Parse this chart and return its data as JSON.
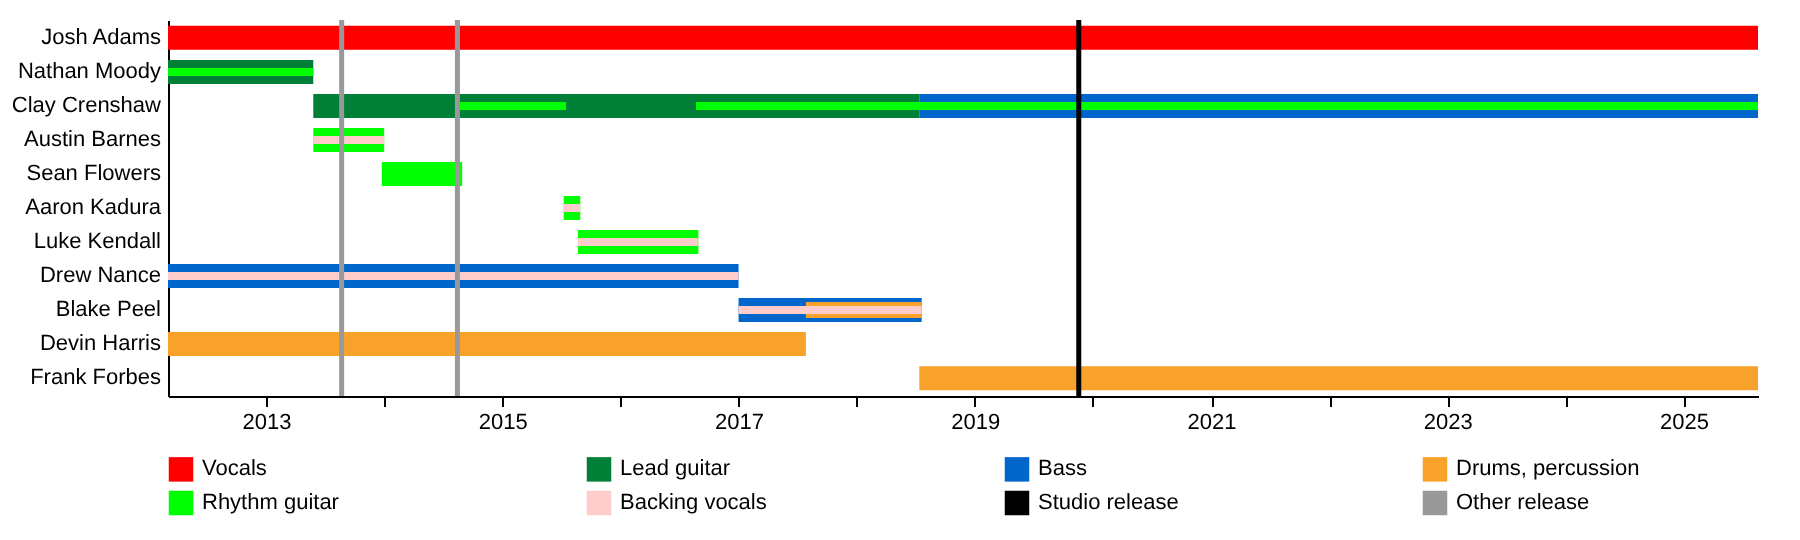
{
  "chart_data": {
    "type": "bar",
    "orientation": "horizontal",
    "legend": "bottom",
    "categories": [
      "Josh Adams",
      "Nathan Moody",
      "Clay Crenshaw",
      "Austin Barnes",
      "Sean Flowers",
      "Aaron Kadura",
      "Luke Kendall",
      "Drew Nance",
      "Blake Peel",
      "Devin Harris",
      "Frank Forbes"
    ],
    "series": [
      {
        "name": "Vocals",
        "color": "#ff0000",
        "base": [
          2012.17,
          null,
          null,
          null,
          null,
          null,
          null,
          null,
          null,
          null,
          null
        ],
        "values": [
          13.46,
          null,
          null,
          null,
          null,
          null,
          null,
          null,
          null,
          null,
          null
        ]
      },
      {
        "name": "Lead guitar",
        "color": "#007f37",
        "base": [
          null,
          2012.17,
          2013.4,
          null,
          null,
          null,
          null,
          null,
          null,
          null,
          null
        ],
        "values": [
          null,
          1.23,
          5.13,
          null,
          null,
          null,
          null,
          null,
          null,
          null,
          null
        ]
      },
      {
        "name": "Bass",
        "color": "#0066cc",
        "base": [
          null,
          null,
          2018.53,
          null,
          null,
          null,
          null,
          2012.17,
          2017.0,
          null,
          null
        ],
        "values": [
          null,
          null,
          7.1,
          null,
          null,
          null,
          null,
          4.83,
          1.55,
          null,
          null
        ]
      },
      {
        "name": "Drums, percussion",
        "color": "#f9a22b",
        "base": [
          null,
          null,
          null,
          null,
          null,
          null,
          null,
          null,
          2017.57,
          2012.17,
          2018.53
        ],
        "values": [
          null,
          null,
          null,
          null,
          null,
          null,
          null,
          null,
          0.98,
          5.4,
          7.1
        ]
      },
      {
        "name": "Rhythm guitar",
        "color": "#00ff00",
        "base": [
          null,
          2012.17,
          2014.64,
          2013.4,
          2013.98,
          2015.52,
          2015.64,
          null,
          null,
          null,
          null
        ],
        "values": [
          null,
          1.23,
          0.9,
          0.6,
          0.68,
          0.14,
          1.02,
          null,
          null,
          null,
          null
        ]
      },
      {
        "color": "#00ff00",
        "base": [
          null,
          null,
          2016.64,
          null,
          null,
          null,
          null,
          null,
          null,
          null,
          null
        ],
        "values": [
          null,
          null,
          8.99,
          null,
          null,
          null,
          null,
          null,
          null,
          null,
          null
        ]
      },
      {
        "name": "Backing vocals",
        "color": "#ffcccc",
        "base": [
          null,
          null,
          null,
          2013.4,
          null,
          2015.52,
          2015.64,
          2012.17,
          2017.0,
          null,
          null
        ],
        "values": [
          null,
          null,
          null,
          0.6,
          null,
          0.14,
          1.02,
          4.83,
          1.55,
          null,
          null
        ]
      }
    ],
    "xlim": [
      2012.17,
      2025.63
    ],
    "xticks": [
      2013,
      {
        "value": 2014,
        "label": null
      },
      2015,
      {
        "value": 2016,
        "label": null
      },
      2017,
      {
        "value": 2018,
        "label": null
      },
      2019,
      {
        "value": 2020,
        "label": null
      },
      2021,
      {
        "value": 2022,
        "label": null
      },
      2023,
      {
        "value": 2024,
        "label": null
      },
      2025
    ],
    "ref_lines": [
      {
        "axis": "x",
        "value": 2019.88,
        "label": "Studio release",
        "color": "#000000"
      },
      {
        "axis": "x",
        "value": 2013.64,
        "label": "Other release",
        "color": "#999999"
      },
      {
        "axis": "x",
        "value": 2014.62,
        "color": "#999999"
      }
    ]
  }
}
